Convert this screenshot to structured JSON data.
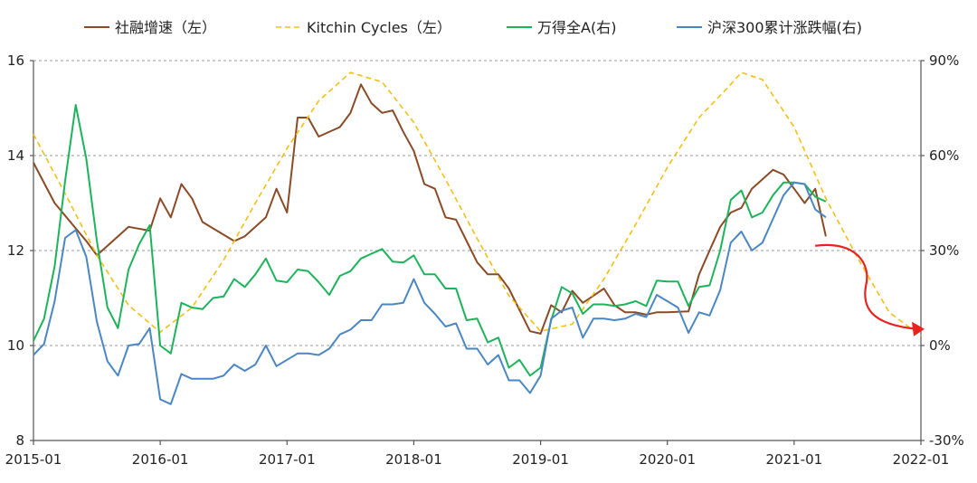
{
  "chart_data": {
    "type": "line",
    "legend_position": "top",
    "grid": true,
    "x_ticks": [
      "2015-01",
      "2016-01",
      "2017-01",
      "2018-01",
      "2019-01",
      "2020-01",
      "2021-01",
      "2022-01"
    ],
    "xlim": [
      "2015-01",
      "2022-01"
    ],
    "left_axis": {
      "ylim": [
        8,
        16
      ],
      "ticks": [
        "8",
        "10",
        "12",
        "14",
        "16"
      ],
      "tick_values": [
        8,
        10,
        12,
        14,
        16
      ]
    },
    "right_axis": {
      "ylim": [
        -30,
        90
      ],
      "ticks": [
        "-30%",
        "0%",
        "30%",
        "60%",
        "90%"
      ],
      "tick_values": [
        -30,
        0,
        30,
        60,
        90
      ]
    },
    "annotation": {
      "type": "arrow",
      "color": "#e8231e",
      "from": [
        "2021-03",
        31.5
      ],
      "to": [
        "2022-01",
        5.5
      ]
    },
    "series": [
      {
        "name": "社融增速（左）",
        "axis": "left",
        "color": "#8b4a26",
        "dash": "solid",
        "points": [
          [
            "2015-01",
            13.85
          ],
          [
            "2015-03",
            13.0
          ],
          [
            "2015-06",
            12.2
          ],
          [
            "2015-07",
            11.9
          ],
          [
            "2015-10",
            12.5
          ],
          [
            "2015-12",
            12.42
          ],
          [
            "2016-01",
            13.1
          ],
          [
            "2016-02",
            12.7
          ],
          [
            "2016-03",
            13.4
          ],
          [
            "2016-04",
            13.1
          ],
          [
            "2016-05",
            12.6
          ],
          [
            "2016-08",
            12.2
          ],
          [
            "2016-09",
            12.3
          ],
          [
            "2016-11",
            12.7
          ],
          [
            "2016-12",
            13.3
          ],
          [
            "2017-01",
            12.8
          ],
          [
            "2017-02",
            14.8
          ],
          [
            "2017-03",
            14.8
          ],
          [
            "2017-04",
            14.4
          ],
          [
            "2017-06",
            14.6
          ],
          [
            "2017-07",
            14.9
          ],
          [
            "2017-08",
            15.5
          ],
          [
            "2017-09",
            15.1
          ],
          [
            "2017-10",
            14.9
          ],
          [
            "2017-11",
            14.95
          ],
          [
            "2017-12",
            14.5
          ],
          [
            "2018-01",
            14.1
          ],
          [
            "2018-02",
            13.4
          ],
          [
            "2018-03",
            13.3
          ],
          [
            "2018-04",
            12.7
          ],
          [
            "2018-05",
            12.65
          ],
          [
            "2018-06",
            12.2
          ],
          [
            "2018-07",
            11.75
          ],
          [
            "2018-08",
            11.5
          ],
          [
            "2018-09",
            11.5
          ],
          [
            "2018-10",
            11.2
          ],
          [
            "2018-12",
            10.3
          ],
          [
            "2019-01",
            10.25
          ],
          [
            "2019-02",
            10.85
          ],
          [
            "2019-03",
            10.7
          ],
          [
            "2019-04",
            11.15
          ],
          [
            "2019-05",
            10.9
          ],
          [
            "2019-06",
            11.05
          ],
          [
            "2019-07",
            11.2
          ],
          [
            "2019-08",
            10.85
          ],
          [
            "2019-09",
            10.7
          ],
          [
            "2019-10",
            10.7
          ],
          [
            "2019-11",
            10.65
          ],
          [
            "2019-12",
            10.7
          ],
          [
            "2020-01",
            10.7
          ],
          [
            "2020-03",
            10.72
          ],
          [
            "2020-04",
            11.5
          ],
          [
            "2020-05",
            12.0
          ],
          [
            "2020-06",
            12.5
          ],
          [
            "2020-07",
            12.8
          ],
          [
            "2020-08",
            12.9
          ],
          [
            "2020-09",
            13.3
          ],
          [
            "2020-11",
            13.7
          ],
          [
            "2020-12",
            13.6
          ],
          [
            "2021-01",
            13.3
          ],
          [
            "2021-02",
            13.0
          ],
          [
            "2021-03",
            13.3
          ],
          [
            "2021-04",
            12.3
          ]
        ]
      },
      {
        "name": "Kitchin Cycles（左）",
        "axis": "left",
        "color": "#f2c014",
        "dash": "dashed",
        "points": [
          [
            "2015-01",
            14.45
          ],
          [
            "2015-04",
            13.2
          ],
          [
            "2015-07",
            11.9
          ],
          [
            "2015-10",
            10.85
          ],
          [
            "2016-01",
            10.28
          ],
          [
            "2016-04",
            10.8
          ],
          [
            "2016-07",
            11.8
          ],
          [
            "2016-10",
            13.0
          ],
          [
            "2017-01",
            14.15
          ],
          [
            "2017-04",
            15.15
          ],
          [
            "2017-07",
            15.75
          ],
          [
            "2017-10",
            15.55
          ],
          [
            "2018-01",
            14.7
          ],
          [
            "2018-04",
            13.5
          ],
          [
            "2018-07",
            12.25
          ],
          [
            "2018-10",
            11.05
          ],
          [
            "2019-01",
            10.3
          ],
          [
            "2019-04",
            10.45
          ],
          [
            "2019-07",
            11.4
          ],
          [
            "2019-10",
            12.55
          ],
          [
            "2020-01",
            13.75
          ],
          [
            "2020-04",
            14.8
          ],
          [
            "2020-07",
            15.5
          ],
          [
            "2020-08",
            15.75
          ],
          [
            "2020-10",
            15.6
          ],
          [
            "2021-01",
            14.6
          ],
          [
            "2021-04",
            13.1
          ],
          [
            "2021-07",
            11.85
          ],
          [
            "2021-10",
            10.7
          ],
          [
            "2022-01",
            10.2
          ]
        ]
      },
      {
        "name": "万得全A(右)",
        "axis": "right",
        "color": "#1db35a",
        "dash": "solid",
        "points": [
          [
            "2015-01",
            1.5
          ],
          [
            "2015-02",
            8.5
          ],
          [
            "2015-03",
            25
          ],
          [
            "2015-04",
            52
          ],
          [
            "2015-05",
            76
          ],
          [
            "2015-06",
            59
          ],
          [
            "2015-07",
            33
          ],
          [
            "2015-08",
            12
          ],
          [
            "2015-09",
            5.5
          ],
          [
            "2015-10",
            24
          ],
          [
            "2015-11",
            32
          ],
          [
            "2015-12",
            38
          ],
          [
            "2016-01",
            0
          ],
          [
            "2016-02",
            -2.5
          ],
          [
            "2016-03",
            13.5
          ],
          [
            "2016-04",
            12
          ],
          [
            "2016-05",
            11.5
          ],
          [
            "2016-06",
            15
          ],
          [
            "2016-07",
            15.5
          ],
          [
            "2016-08",
            21
          ],
          [
            "2016-09",
            18.5
          ],
          [
            "2016-10",
            22.5
          ],
          [
            "2016-11",
            27.5
          ],
          [
            "2016-12",
            20.5
          ],
          [
            "2017-01",
            20
          ],
          [
            "2017-02",
            24
          ],
          [
            "2017-03",
            23.5
          ],
          [
            "2017-04",
            20
          ],
          [
            "2017-05",
            16
          ],
          [
            "2017-06",
            22
          ],
          [
            "2017-07",
            23.5
          ],
          [
            "2017-08",
            27.5
          ],
          [
            "2017-09",
            29
          ],
          [
            "2017-10",
            30.5
          ],
          [
            "2017-11",
            26.5
          ],
          [
            "2017-12",
            26.2
          ],
          [
            "2018-01",
            28.5
          ],
          [
            "2018-02",
            22.5
          ],
          [
            "2018-03",
            22.5
          ],
          [
            "2018-04",
            18
          ],
          [
            "2018-05",
            18
          ],
          [
            "2018-06",
            8
          ],
          [
            "2018-07",
            8.5
          ],
          [
            "2018-08",
            1
          ],
          [
            "2018-09",
            2.5
          ],
          [
            "2018-10",
            -7
          ],
          [
            "2018-11",
            -4.5
          ],
          [
            "2018-12",
            -9.5
          ],
          [
            "2019-01",
            -7
          ],
          [
            "2019-02",
            8
          ],
          [
            "2019-03",
            18.5
          ],
          [
            "2019-04",
            16.5
          ],
          [
            "2019-05",
            10
          ],
          [
            "2019-06",
            13
          ],
          [
            "2019-07",
            13
          ],
          [
            "2019-08",
            12.5
          ],
          [
            "2019-09",
            13
          ],
          [
            "2019-10",
            14
          ],
          [
            "2019-11",
            12.5
          ],
          [
            "2019-12",
            20.5
          ],
          [
            "2020-01",
            20.2
          ],
          [
            "2020-02",
            20.2
          ],
          [
            "2020-03",
            12.5
          ],
          [
            "2020-04",
            18.5
          ],
          [
            "2020-05",
            19
          ],
          [
            "2020-06",
            30
          ],
          [
            "2020-07",
            46
          ],
          [
            "2020-08",
            49
          ],
          [
            "2020-09",
            40.5
          ],
          [
            "2020-10",
            42
          ],
          [
            "2020-11",
            47.5
          ],
          [
            "2020-12",
            51.5
          ],
          [
            "2021-01",
            51.5
          ],
          [
            "2021-02",
            51
          ],
          [
            "2021-03",
            47
          ],
          [
            "2021-04",
            45.5
          ]
        ]
      },
      {
        "name": "沪深300累计涨跌幅(右)",
        "axis": "right",
        "color": "#4a87c2",
        "dash": "solid",
        "points": [
          [
            "2015-01",
            -3
          ],
          [
            "2015-02",
            0.5
          ],
          [
            "2015-03",
            14
          ],
          [
            "2015-04",
            34
          ],
          [
            "2015-05",
            36.5
          ],
          [
            "2015-06",
            28
          ],
          [
            "2015-07",
            7.5
          ],
          [
            "2015-08",
            -5
          ],
          [
            "2015-09",
            -9.5
          ],
          [
            "2015-10",
            0
          ],
          [
            "2015-11",
            0.5
          ],
          [
            "2015-12",
            5.5
          ],
          [
            "2016-01",
            -17
          ],
          [
            "2016-02",
            -18.5
          ],
          [
            "2016-03",
            -9
          ],
          [
            "2016-04",
            -10.5
          ],
          [
            "2016-05",
            -10.5
          ],
          [
            "2016-06",
            -10.5
          ],
          [
            "2016-07",
            -9.5
          ],
          [
            "2016-08",
            -6
          ],
          [
            "2016-09",
            -8
          ],
          [
            "2016-10",
            -6
          ],
          [
            "2016-11",
            0
          ],
          [
            "2016-12",
            -6.5
          ],
          [
            "2017-01",
            -4.5
          ],
          [
            "2017-02",
            -2.5
          ],
          [
            "2017-03",
            -2.5
          ],
          [
            "2017-04",
            -3
          ],
          [
            "2017-05",
            -1
          ],
          [
            "2017-06",
            3.5
          ],
          [
            "2017-07",
            5
          ],
          [
            "2017-08",
            8
          ],
          [
            "2017-09",
            8
          ],
          [
            "2017-10",
            13
          ],
          [
            "2017-11",
            13
          ],
          [
            "2017-12",
            13.5
          ],
          [
            "2018-01",
            21
          ],
          [
            "2018-02",
            13.5
          ],
          [
            "2018-03",
            10
          ],
          [
            "2018-04",
            6
          ],
          [
            "2018-05",
            7
          ],
          [
            "2018-06",
            -1
          ],
          [
            "2018-07",
            -1
          ],
          [
            "2018-08",
            -6
          ],
          [
            "2018-09",
            -3
          ],
          [
            "2018-10",
            -11
          ],
          [
            "2018-11",
            -11
          ],
          [
            "2018-12",
            -15
          ],
          [
            "2019-01",
            -9.5
          ],
          [
            "2019-02",
            8.5
          ],
          [
            "2019-03",
            11
          ],
          [
            "2019-04",
            12
          ],
          [
            "2019-05",
            2.5
          ],
          [
            "2019-06",
            8.5
          ],
          [
            "2019-07",
            8.5
          ],
          [
            "2019-08",
            8
          ],
          [
            "2019-09",
            8.5
          ],
          [
            "2019-10",
            10
          ],
          [
            "2019-11",
            9
          ],
          [
            "2019-12",
            16
          ],
          [
            "2020-01",
            14
          ],
          [
            "2020-02",
            12
          ],
          [
            "2020-03",
            4
          ],
          [
            "2020-04",
            10.5
          ],
          [
            "2020-05",
            9.5
          ],
          [
            "2020-06",
            17.5
          ],
          [
            "2020-07",
            32.5
          ],
          [
            "2020-08",
            36
          ],
          [
            "2020-09",
            30
          ],
          [
            "2020-10",
            32.5
          ],
          [
            "2020-11",
            40
          ],
          [
            "2020-12",
            47.5
          ],
          [
            "2021-01",
            51.5
          ],
          [
            "2021-02",
            51
          ],
          [
            "2021-03",
            43
          ],
          [
            "2021-04",
            40.5
          ]
        ]
      }
    ]
  }
}
